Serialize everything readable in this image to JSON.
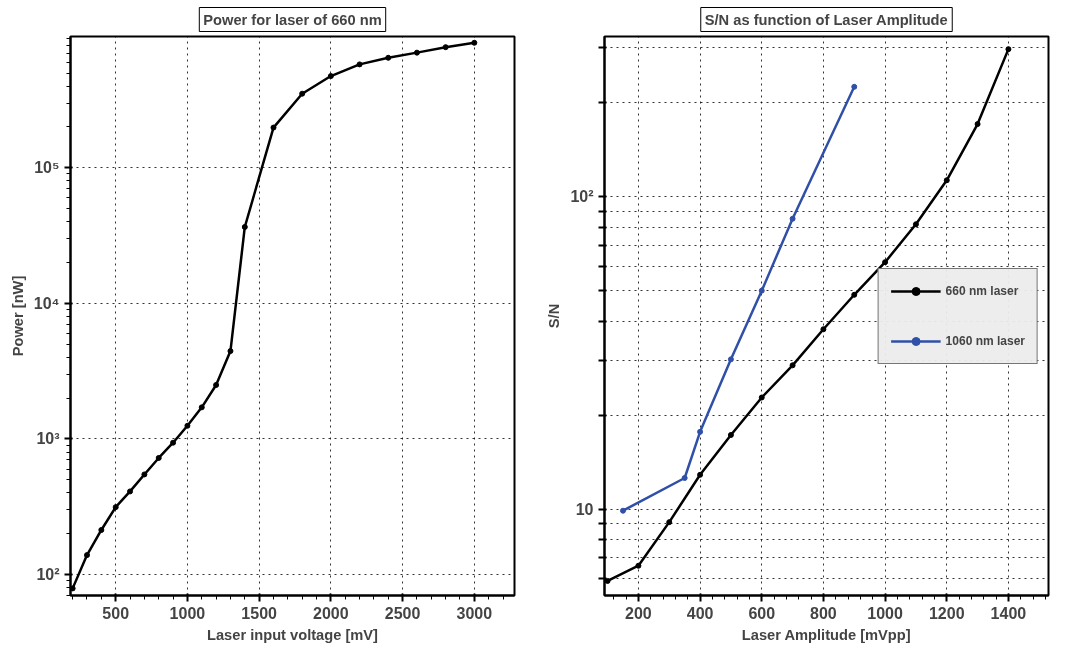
{
  "chart_data": [
    {
      "type": "line",
      "title": "Power for laser of 660 nm",
      "xlabel": "Laser input voltage [mV]",
      "ylabel": "Power [nW]",
      "log": "y",
      "grid": true,
      "marker": "circle",
      "line_style": "solid",
      "legend": false,
      "x": [
        200,
        300,
        400,
        500,
        600,
        700,
        800,
        900,
        1000,
        1100,
        1200,
        1300,
        1400,
        1600,
        1800,
        2000,
        2200,
        2400,
        2600,
        2800,
        3000
      ],
      "series": [
        {
          "color": "#000000",
          "values": [
            79,
            139,
            213,
            314,
            410,
            547,
            724,
            938,
            1250,
            1710,
            2500,
            4450,
            36600,
            198000,
            352000,
            475000,
            579000,
            648000,
            707000,
            776000,
            836000
          ]
        }
      ],
      "xlim": [
        185,
        3280
      ],
      "ylim": [
        70,
        930000
      ],
      "xticks": [
        500,
        1000,
        1500,
        2000,
        2500,
        3000
      ],
      "yticks": [
        {
          "value": 100,
          "label": "10²"
        },
        {
          "value": 1000,
          "label": "10³"
        },
        {
          "value": 10000,
          "label": "10⁴"
        },
        {
          "value": 100000,
          "label": "10⁵"
        }
      ]
    },
    {
      "type": "line",
      "title": "S/N as function of Laser Amplitude",
      "xlabel": "Laser Amplitude [mVpp]",
      "ylabel": "S/N",
      "log": "y",
      "grid": true,
      "marker": "circle",
      "line_style": "solid",
      "legend": "right",
      "series": [
        {
          "name": "660 nm laser",
          "color": "#000000",
          "x": [
            100,
            200,
            300,
            400,
            500,
            600,
            700,
            800,
            900,
            1000,
            1100,
            1200,
            1300,
            1400
          ],
          "values": [
            5.9,
            6.6,
            9.1,
            12.9,
            17.3,
            22.8,
            28.9,
            37.7,
            48.6,
            61.8,
            81.7,
            113,
            171,
            297
          ]
        },
        {
          "name": "1060 nm laser",
          "color": "#3050a8",
          "x": [
            150,
            350,
            400,
            500,
            600,
            700,
            900
          ],
          "values": [
            9.9,
            12.6,
            17.7,
            30.2,
            50.1,
            85.1,
            225
          ]
        }
      ],
      "xlim": [
        90,
        1530
      ],
      "ylim": [
        5.3,
        326
      ],
      "xticks": [
        200,
        400,
        600,
        800,
        1000,
        1200,
        1400
      ],
      "yticks": [
        {
          "value": 6,
          "label": null
        },
        {
          "value": 7,
          "label": null
        },
        {
          "value": 8,
          "label": null
        },
        {
          "value": 9,
          "label": null
        },
        10,
        {
          "value": 20,
          "label": null
        },
        {
          "value": 30,
          "label": null
        },
        {
          "value": 40,
          "label": null
        },
        {
          "value": 50,
          "label": null
        },
        {
          "value": 60,
          "label": null
        },
        {
          "value": 70,
          "label": null
        },
        {
          "value": 80,
          "label": null
        },
        {
          "value": 90,
          "label": null
        },
        {
          "value": 100,
          "label": "10²"
        },
        {
          "value": 200,
          "label": null
        },
        {
          "value": 300,
          "label": null
        }
      ]
    }
  ]
}
